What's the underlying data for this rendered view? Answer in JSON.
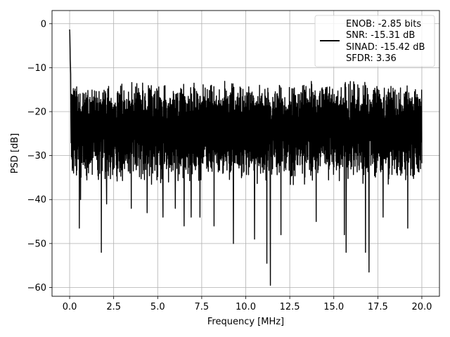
{
  "chart_data": {
    "type": "line",
    "xlabel": "Frequency [MHz]",
    "ylabel": "PSD [dB]",
    "xlim": [
      -1.0,
      21.0
    ],
    "ylim": [
      -62.0,
      3.0
    ],
    "xticks": [
      0.0,
      2.5,
      5.0,
      7.5,
      10.0,
      12.5,
      15.0,
      17.5,
      20.0
    ],
    "xtick_labels": [
      "0.0",
      "2.5",
      "5.0",
      "7.5",
      "10.0",
      "12.5",
      "15.0",
      "17.5",
      "20.0"
    ],
    "yticks": [
      0,
      -10,
      -20,
      -30,
      -40,
      -50,
      -60
    ],
    "ytick_labels": [
      "0",
      "−10",
      "−20",
      "−30",
      "−40",
      "−50",
      "−60"
    ],
    "grid": true,
    "legend_position": "top-right",
    "line_color": "#000000",
    "legend": {
      "lines": [
        "ENOB: -2.85 bits",
        "SNR: -15.31 dB",
        "SINAD: -15.42 dB",
        "SFDR: 3.36"
      ]
    },
    "series": [
      {
        "color": "#000000",
        "x_range": [
          0.0,
          20.0
        ],
        "peak": {
          "x": 0.0,
          "y": 0.0
        },
        "noise_band": {
          "upper_min": -17,
          "upper_max": -13,
          "lower_min": -37,
          "lower_max": -30
        },
        "deep_dips": [
          {
            "x": 0.55,
            "y": -46.5
          },
          {
            "x": 0.62,
            "y": -40.0
          },
          {
            "x": 1.8,
            "y": -52.0
          },
          {
            "x": 2.1,
            "y": -41.0
          },
          {
            "x": 3.5,
            "y": -42.0
          },
          {
            "x": 4.4,
            "y": -43.0
          },
          {
            "x": 5.3,
            "y": -44.0
          },
          {
            "x": 6.0,
            "y": -42.0
          },
          {
            "x": 6.5,
            "y": -46.0
          },
          {
            "x": 6.9,
            "y": -44.0
          },
          {
            "x": 7.4,
            "y": -44.0
          },
          {
            "x": 8.2,
            "y": -46.0
          },
          {
            "x": 9.3,
            "y": -50.0
          },
          {
            "x": 10.5,
            "y": -49.0
          },
          {
            "x": 11.2,
            "y": -54.5
          },
          {
            "x": 11.4,
            "y": -59.5
          },
          {
            "x": 12.0,
            "y": -48.0
          },
          {
            "x": 14.0,
            "y": -45.0
          },
          {
            "x": 15.6,
            "y": -48.0
          },
          {
            "x": 15.7,
            "y": -52.0
          },
          {
            "x": 16.8,
            "y": -52.0
          },
          {
            "x": 17.0,
            "y": -56.5
          },
          {
            "x": 17.8,
            "y": -44.0
          },
          {
            "x": 19.2,
            "y": -46.5
          }
        ]
      }
    ]
  }
}
